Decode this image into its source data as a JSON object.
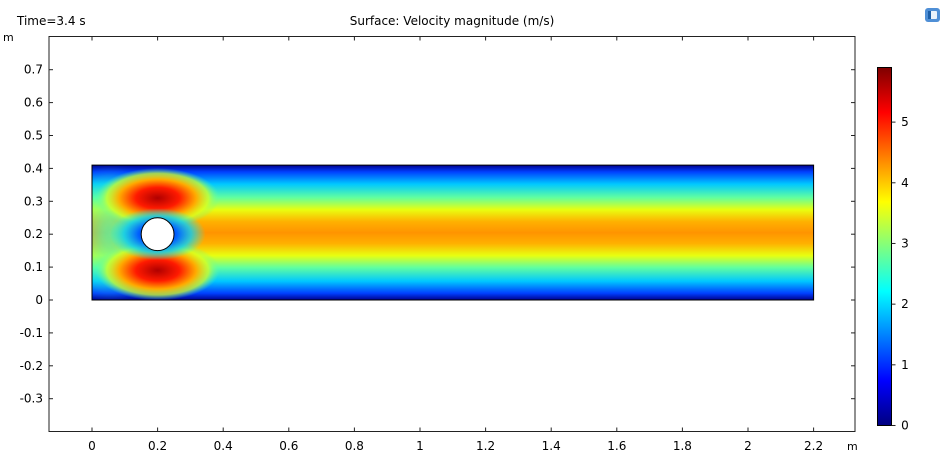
{
  "header": {
    "time_label": "Time=3.4 s",
    "title": "Surface: Velocity magnitude (m/s)"
  },
  "chart_data": {
    "type": "heatmap",
    "title": "Surface: Velocity magnitude (m/s)",
    "annotation": "Time=3.4 s",
    "x_unit": "m",
    "y_unit": "m",
    "xlim": [
      -0.13,
      2.33
    ],
    "ylim": [
      -0.4,
      0.8
    ],
    "x_ticks": [
      0,
      0.2,
      0.4,
      0.6,
      0.8,
      1,
      1.2,
      1.4,
      1.6,
      1.8,
      2,
      2.2
    ],
    "x_tick_labels": [
      "0",
      "0.2",
      "0.4",
      "0.6",
      "0.8",
      "1",
      "1.2",
      "1.4",
      "1.6",
      "1.8",
      "2",
      "2.2"
    ],
    "y_ticks": [
      0.7,
      0.6,
      0.5,
      0.4,
      0.3,
      0.2,
      0.1,
      0,
      -0.1,
      -0.2,
      -0.3
    ],
    "y_tick_labels": [
      "0.7",
      "0.6",
      "0.5",
      "0.4",
      "0.3",
      "0.2",
      "0.1",
      "0",
      "-0.1",
      "-0.2",
      "-0.3"
    ],
    "domain": {
      "x": [
        0,
        2.2
      ],
      "y": [
        0,
        0.41
      ]
    },
    "obstacle": {
      "shape": "circle",
      "center": [
        0.2,
        0.2
      ],
      "radius": 0.05
    },
    "colorbar": {
      "colormap": "jet",
      "range": [
        0,
        5.9
      ],
      "ticks": [
        0,
        1,
        2,
        3,
        4,
        5
      ],
      "tick_labels": [
        "0",
        "1",
        "2",
        "3",
        "4",
        "5"
      ]
    },
    "grid": false
  }
}
